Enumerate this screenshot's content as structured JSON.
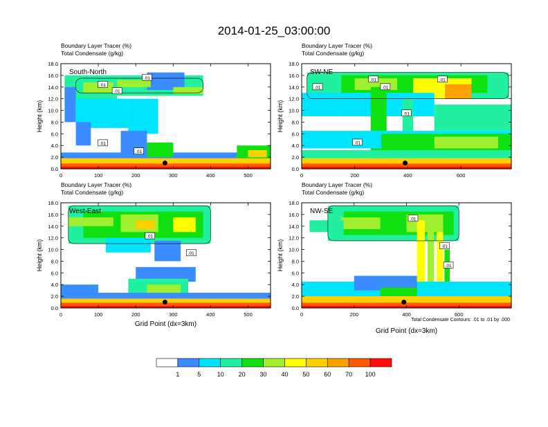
{
  "title": "2014-01-25_03:00:00",
  "footnote": "Total Condensate Contours: .01 to .01 by .000",
  "colors": [
    "#ffffff",
    "#3a8cff",
    "#00e5ff",
    "#20f0a0",
    "#10e010",
    "#a0f030",
    "#ffff00",
    "#ffd000",
    "#ffa000",
    "#ff5a00",
    "#ff0d0d"
  ],
  "colorbar_labels": [
    "1",
    "5",
    "10",
    "20",
    "30",
    "40",
    "50",
    "60",
    "70",
    "100"
  ],
  "chart_data": [
    {
      "type": "heatmap",
      "title": "South-North",
      "subtitle_lines": [
        "Boundary Layer Tracer (%)",
        "Total Condensate (g/kg)"
      ],
      "ylabel": "Height (km)",
      "xlabel": "",
      "ylim": [
        0,
        18
      ],
      "xlim": [
        0,
        560
      ],
      "yticks": [
        "0.0",
        "2.0",
        "4.0",
        "6.0",
        "8.0",
        "10.0",
        "12.0",
        "14.0",
        "16.0",
        "18.0"
      ],
      "ytick_values": [
        0,
        2,
        4,
        6,
        8,
        10,
        12,
        14,
        16,
        18
      ],
      "xticks": [
        "0",
        "100",
        "200",
        "300",
        "400",
        "500"
      ],
      "xtick_values": [
        0,
        100,
        200,
        300,
        400,
        500
      ],
      "contour_labels": [
        {
          "text": ".01",
          "x": 150,
          "y": 13.3
        },
        {
          "text": ".01",
          "x": 230,
          "y": 15.6
        },
        {
          "text": ".01",
          "x": 112,
          "y": 14.4
        },
        {
          "text": ".01",
          "x": 112,
          "y": 4.4
        },
        {
          "text": ".01",
          "x": 208,
          "y": 3.0
        }
      ],
      "marker": {
        "x": 278,
        "y": 1.0
      },
      "cells": [
        {
          "x": [
            40,
            380
          ],
          "y": [
            13.0,
            15.5
          ],
          "level": 4
        },
        {
          "x": [
            10,
            150
          ],
          "y": [
            11.5,
            16.0
          ],
          "level": 3
        },
        {
          "x": [
            150,
            380
          ],
          "y": [
            12.5,
            16.0
          ],
          "level": 3
        },
        {
          "x": [
            10,
            40
          ],
          "y": [
            8.0,
            14.0
          ],
          "level": 1
        },
        {
          "x": [
            40,
            180
          ],
          "y": [
            7.0,
            12.0
          ],
          "level": 2
        },
        {
          "x": [
            180,
            260
          ],
          "y": [
            6.0,
            12.0
          ],
          "level": 2
        },
        {
          "x": [
            230,
            330
          ],
          "y": [
            13.5,
            16.5
          ],
          "level": 1
        },
        {
          "x": [
            60,
            140
          ],
          "y": [
            13.0,
            14.8
          ],
          "level": 5
        },
        {
          "x": [
            150,
            240
          ],
          "y": [
            14.0,
            15.2
          ],
          "level": 5
        },
        {
          "x": [
            300,
            380
          ],
          "y": [
            12.8,
            14.0
          ],
          "level": 5
        },
        {
          "x": [
            40,
            80
          ],
          "y": [
            4.0,
            8.0
          ],
          "level": 1
        },
        {
          "x": [
            160,
            230
          ],
          "y": [
            2.5,
            6.5
          ],
          "level": 1
        },
        {
          "x": [
            0,
            560
          ],
          "y": [
            1.8,
            2.8
          ],
          "level": 1
        },
        {
          "x": [
            230,
            300
          ],
          "y": [
            2.0,
            4.5
          ],
          "level": 4
        },
        {
          "x": [
            470,
            560
          ],
          "y": [
            1.5,
            4.0
          ],
          "level": 4
        },
        {
          "x": [
            500,
            550
          ],
          "y": [
            2.0,
            3.2
          ],
          "level": 7
        },
        {
          "x": [
            0,
            560
          ],
          "y": [
            0.4,
            1.8
          ],
          "level": 7
        },
        {
          "x": [
            0,
            560
          ],
          "y": [
            0.0,
            0.9
          ],
          "level": 9
        },
        {
          "x": [
            0,
            560
          ],
          "y": [
            0.0,
            0.35
          ],
          "level": 10
        }
      ]
    },
    {
      "type": "heatmap",
      "title": "SW-NE",
      "subtitle_lines": [
        "Boundary Layer Tracer (%)",
        "Total Condensate (g/kg)"
      ],
      "ylabel": "Height (km)",
      "xlabel": "",
      "ylim": [
        0,
        18
      ],
      "xlim": [
        0,
        790
      ],
      "yticks": [
        "0.0",
        "2.0",
        "4.0",
        "6.0",
        "8.0",
        "10.0",
        "12.0",
        "14.0",
        "16.0",
        "18.0"
      ],
      "ytick_values": [
        0,
        2,
        4,
        6,
        8,
        10,
        12,
        14,
        16,
        18
      ],
      "xticks": [
        "0",
        "200",
        "400",
        "600"
      ],
      "xtick_values": [
        0,
        200,
        400,
        600
      ],
      "contour_labels": [
        {
          "text": ".01",
          "x": 60,
          "y": 14.0
        },
        {
          "text": ".01",
          "x": 270,
          "y": 15.3
        },
        {
          "text": ".01",
          "x": 315,
          "y": 14.0
        },
        {
          "text": ".01",
          "x": 395,
          "y": 9.5
        },
        {
          "text": ".01",
          "x": 210,
          "y": 4.5
        },
        {
          "text": ".01",
          "x": 530,
          "y": 15.3
        }
      ],
      "marker": {
        "x": 390,
        "y": 1.0
      },
      "cells": [
        {
          "x": [
            20,
            780
          ],
          "y": [
            12.0,
            16.5
          ],
          "level": 3
        },
        {
          "x": [
            150,
            700
          ],
          "y": [
            13.0,
            16.0
          ],
          "level": 4
        },
        {
          "x": [
            200,
            360
          ],
          "y": [
            13.5,
            15.5
          ],
          "level": 5
        },
        {
          "x": [
            420,
            640
          ],
          "y": [
            12.0,
            15.5
          ],
          "level": 6
        },
        {
          "x": [
            540,
            640
          ],
          "y": [
            12.0,
            14.5
          ],
          "level": 8
        },
        {
          "x": [
            0,
            150
          ],
          "y": [
            9.0,
            13.0
          ],
          "level": 2
        },
        {
          "x": [
            150,
            500
          ],
          "y": [
            9.0,
            13.0
          ],
          "level": 2
        },
        {
          "x": [
            260,
            320
          ],
          "y": [
            1.0,
            14.0
          ],
          "level": 4
        },
        {
          "x": [
            380,
            420
          ],
          "y": [
            1.0,
            12.0
          ],
          "level": 3
        },
        {
          "x": [
            500,
            790
          ],
          "y": [
            6.5,
            11.0
          ],
          "level": 3
        },
        {
          "x": [
            0,
            790
          ],
          "y": [
            3.5,
            6.5
          ],
          "level": 2
        },
        {
          "x": [
            300,
            790
          ],
          "y": [
            3.0,
            6.0
          ],
          "level": 4
        },
        {
          "x": [
            500,
            740
          ],
          "y": [
            3.5,
            5.5
          ],
          "level": 5
        },
        {
          "x": [
            0,
            790
          ],
          "y": [
            1.8,
            3.2
          ],
          "level": 3
        },
        {
          "x": [
            0,
            790
          ],
          "y": [
            0.4,
            1.8
          ],
          "level": 7
        },
        {
          "x": [
            0,
            790
          ],
          "y": [
            0.0,
            0.9
          ],
          "level": 9
        },
        {
          "x": [
            0,
            790
          ],
          "y": [
            0.0,
            0.35
          ],
          "level": 10
        }
      ]
    },
    {
      "type": "heatmap",
      "title": "West-East",
      "subtitle_lines": [
        "Boundary Layer Tracer (%)",
        "Total Condensate (g/kg)"
      ],
      "ylabel": "Height (km)",
      "xlabel": "Grid Point (dx=3km)",
      "ylim": [
        0,
        18
      ],
      "xlim": [
        0,
        560
      ],
      "yticks": [
        "0.0",
        "2.0",
        "4.0",
        "6.0",
        "8.0",
        "10.0",
        "12.0",
        "14.0",
        "16.0",
        "18.0"
      ],
      "ytick_values": [
        0,
        2,
        4,
        6,
        8,
        10,
        12,
        14,
        16,
        18
      ],
      "xticks": [
        "0",
        "100",
        "200",
        "300",
        "400",
        "500"
      ],
      "xtick_values": [
        0,
        100,
        200,
        300,
        400,
        500
      ],
      "contour_labels": [
        {
          "text": ".01",
          "x": 238,
          "y": 12.3
        },
        {
          "text": ".01",
          "x": 348,
          "y": 9.4
        }
      ],
      "marker": {
        "x": 278,
        "y": 1.0
      },
      "cells": [
        {
          "x": [
            20,
            400
          ],
          "y": [
            11.0,
            17.5
          ],
          "level": 3
        },
        {
          "x": [
            60,
            380
          ],
          "y": [
            12.0,
            16.5
          ],
          "level": 4
        },
        {
          "x": [
            20,
            140
          ],
          "y": [
            14.0,
            15.5
          ],
          "level": 5
        },
        {
          "x": [
            160,
            260
          ],
          "y": [
            13.0,
            16.0
          ],
          "level": 5
        },
        {
          "x": [
            200,
            250
          ],
          "y": [
            13.5,
            15.0
          ],
          "level": 7
        },
        {
          "x": [
            300,
            360
          ],
          "y": [
            13.0,
            15.5
          ],
          "level": 6
        },
        {
          "x": [
            120,
            240
          ],
          "y": [
            9.5,
            12.0
          ],
          "level": 2
        },
        {
          "x": [
            250,
            320
          ],
          "y": [
            8.0,
            11.5
          ],
          "level": 1
        },
        {
          "x": [
            200,
            360
          ],
          "y": [
            4.5,
            7.0
          ],
          "level": 1
        },
        {
          "x": [
            0,
            100
          ],
          "y": [
            2.0,
            4.0
          ],
          "level": 1
        },
        {
          "x": [
            180,
            340
          ],
          "y": [
            2.5,
            5.0
          ],
          "level": 3
        },
        {
          "x": [
            230,
            320
          ],
          "y": [
            2.5,
            4.0
          ],
          "level": 5
        },
        {
          "x": [
            0,
            560
          ],
          "y": [
            1.6,
            2.6
          ],
          "level": 1
        },
        {
          "x": [
            0,
            560
          ],
          "y": [
            0.4,
            1.6
          ],
          "level": 7
        },
        {
          "x": [
            0,
            560
          ],
          "y": [
            0.0,
            0.9
          ],
          "level": 9
        },
        {
          "x": [
            0,
            560
          ],
          "y": [
            0.0,
            0.35
          ],
          "level": 10
        }
      ]
    },
    {
      "type": "heatmap",
      "title": "NW-SE",
      "subtitle_lines": [
        "Boundary Layer Tracer (%)",
        "Total Condensate (g/kg)"
      ],
      "ylabel": "Height (km)",
      "xlabel": "Grid Point (dx=3km)",
      "ylim": [
        0,
        18
      ],
      "xlim": [
        0,
        800
      ],
      "yticks": [
        "0.0",
        "2.0",
        "4.0",
        "6.0",
        "8.0",
        "10.0",
        "12.0",
        "14.0",
        "16.0",
        "18.0"
      ],
      "ytick_values": [
        0,
        2,
        4,
        6,
        8,
        10,
        12,
        14,
        16,
        18
      ],
      "xticks": [
        "0",
        "200",
        "400",
        "600"
      ],
      "xtick_values": [
        0,
        200,
        400,
        600
      ],
      "contour_labels": [
        {
          "text": ".01",
          "x": 425,
          "y": 15.3
        },
        {
          "text": ".01",
          "x": 545,
          "y": 10.6
        },
        {
          "text": ".01",
          "x": 560,
          "y": 7.3
        }
      ],
      "marker": {
        "x": 390,
        "y": 1.0
      },
      "cells": [
        {
          "x": [
            100,
            600
          ],
          "y": [
            11.5,
            17.5
          ],
          "level": 3
        },
        {
          "x": [
            160,
            580
          ],
          "y": [
            12.5,
            16.5
          ],
          "level": 4
        },
        {
          "x": [
            150,
            300
          ],
          "y": [
            13.5,
            15.5
          ],
          "level": 5
        },
        {
          "x": [
            400,
            540
          ],
          "y": [
            13.0,
            16.0
          ],
          "level": 5
        },
        {
          "x": [
            30,
            160
          ],
          "y": [
            13.0,
            15.0
          ],
          "level": 3
        },
        {
          "x": [
            440,
            470
          ],
          "y": [
            0.5,
            15.0
          ],
          "level": 6
        },
        {
          "x": [
            480,
            505
          ],
          "y": [
            0.5,
            15.0
          ],
          "level": 5
        },
        {
          "x": [
            515,
            540
          ],
          "y": [
            0.5,
            13.0
          ],
          "level": 6
        },
        {
          "x": [
            545,
            565
          ],
          "y": [
            0.5,
            10.0
          ],
          "level": 4
        },
        {
          "x": [
            0,
            800
          ],
          "y": [
            2.0,
            4.5
          ],
          "level": 2
        },
        {
          "x": [
            200,
            440
          ],
          "y": [
            3.0,
            5.5
          ],
          "level": 1
        },
        {
          "x": [
            300,
            440
          ],
          "y": [
            2.0,
            3.5
          ],
          "level": 4
        },
        {
          "x": [
            0,
            800
          ],
          "y": [
            0.4,
            2.0
          ],
          "level": 7
        },
        {
          "x": [
            0,
            800
          ],
          "y": [
            0.0,
            0.9
          ],
          "level": 9
        },
        {
          "x": [
            0,
            800
          ],
          "y": [
            0.0,
            0.35
          ],
          "level": 10
        }
      ]
    }
  ]
}
